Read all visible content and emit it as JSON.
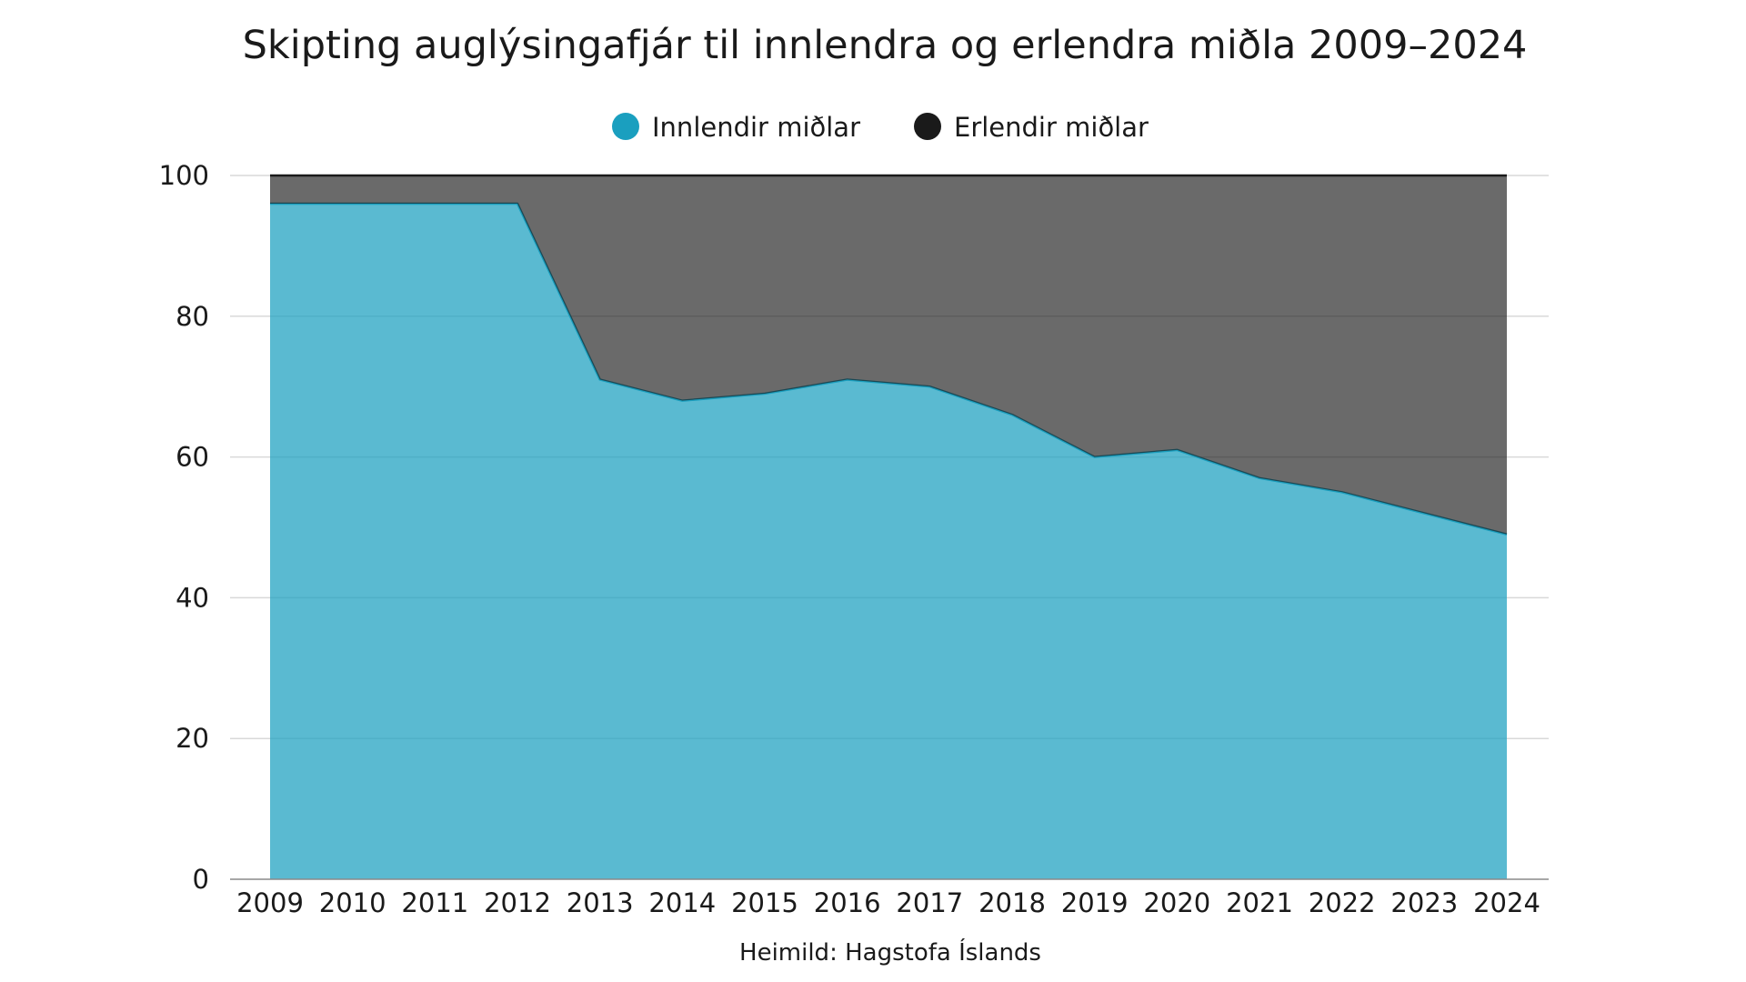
{
  "chart_data": {
    "type": "area",
    "stacked": true,
    "title": "Skipting auglýsingafjár til innlendra og erlendra miðla 2009–2024",
    "source": "Heimild: Hagstofa Íslands",
    "xlabel": "",
    "ylabel": "",
    "categories": [
      "2009",
      "2010",
      "2011",
      "2012",
      "2013",
      "2014",
      "2015",
      "2016",
      "2017",
      "2018",
      "2019",
      "2020",
      "2021",
      "2022",
      "2023",
      "2024"
    ],
    "series": [
      {
        "name": "Innlendir miðlar",
        "color": "#1a9fbf",
        "values": [
          96,
          96,
          96,
          96,
          71,
          68,
          69,
          71,
          70,
          66,
          60,
          61,
          57,
          55,
          52,
          49
        ]
      },
      {
        "name": "Erlendir miðlar",
        "color": "#1a1a1a",
        "values": [
          4,
          4,
          4,
          4,
          29,
          32,
          31,
          29,
          30,
          34,
          40,
          39,
          43,
          45,
          48,
          51
        ]
      }
    ],
    "ylim": [
      0,
      100
    ],
    "yticks": [
      0,
      20,
      40,
      60,
      80,
      100
    ],
    "grid": true,
    "legend_position": "top-center"
  }
}
